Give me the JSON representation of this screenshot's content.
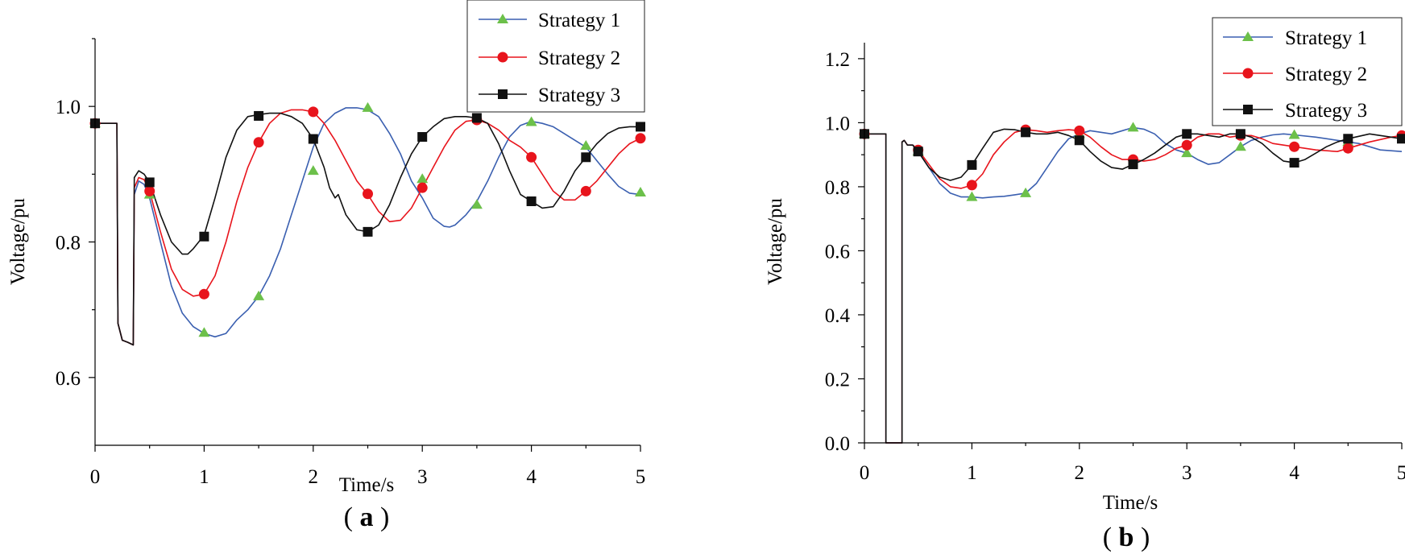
{
  "colors": {
    "strategy1_line": "#3a5fb0",
    "strategy1_marker": "#6cc04a",
    "strategy2": "#e8141c",
    "strategy3": "#111111"
  },
  "chart_data": [
    {
      "type": "line",
      "panel_label": "a",
      "xlabel": "Time/s",
      "ylabel": "Voltage/pu",
      "xlim": [
        0,
        5
      ],
      "ylim": [
        0.5,
        1.1
      ],
      "xticks": [
        0,
        1,
        2,
        3,
        4,
        5
      ],
      "yticks": [
        0.6,
        0.8,
        1.0
      ],
      "xtick_labels": [
        "0",
        "1",
        "2",
        "3",
        "4",
        "5"
      ],
      "ytick_labels": [
        "0.6",
        "0.8",
        "1.0"
      ],
      "legend": [
        "Strategy 1",
        "Strategy 2",
        "Strategy 3"
      ],
      "legend_position": "top-right",
      "series": [
        {
          "name": "Strategy 1",
          "x": [
            0,
            0.2,
            0.2,
            0.21,
            0.25,
            0.3,
            0.35,
            0.35,
            0.36,
            0.4,
            0.45,
            0.5,
            0.6,
            0.7,
            0.8,
            0.9,
            1.0,
            1.1,
            1.2,
            1.3,
            1.4,
            1.5,
            1.6,
            1.7,
            1.8,
            1.9,
            2.0,
            2.1,
            2.2,
            2.3,
            2.4,
            2.5,
            2.6,
            2.7,
            2.8,
            2.9,
            3.0,
            3.1,
            3.2,
            3.25,
            3.3,
            3.4,
            3.5,
            3.6,
            3.7,
            3.8,
            3.9,
            4.0,
            4.1,
            4.2,
            4.3,
            4.4,
            4.5,
            4.6,
            4.7,
            4.8,
            4.9,
            5.0
          ],
          "y": [
            0.975,
            0.975,
            0.975,
            0.68,
            0.655,
            0.652,
            0.648,
            0.648,
            0.87,
            0.89,
            0.885,
            0.865,
            0.8,
            0.735,
            0.695,
            0.675,
            0.665,
            0.66,
            0.665,
            0.685,
            0.7,
            0.72,
            0.75,
            0.79,
            0.84,
            0.89,
            0.94,
            0.975,
            0.99,
            0.998,
            0.998,
            0.995,
            0.985,
            0.96,
            0.93,
            0.89,
            0.865,
            0.835,
            0.823,
            0.822,
            0.825,
            0.84,
            0.86,
            0.89,
            0.925,
            0.955,
            0.972,
            0.978,
            0.975,
            0.97,
            0.96,
            0.95,
            0.94,
            0.92,
            0.9,
            0.882,
            0.872,
            0.87
          ],
          "marker_x": [
            0,
            0.5,
            1.0,
            1.5,
            2.0,
            2.5,
            3.0,
            3.5,
            4.0,
            4.5,
            5.0
          ],
          "marker_y": [
            0.975,
            0.87,
            0.666,
            0.72,
            0.905,
            0.998,
            0.893,
            0.855,
            0.977,
            0.942,
            0.873
          ]
        },
        {
          "name": "Strategy 2",
          "x": [
            0,
            0.2,
            0.2,
            0.21,
            0.25,
            0.3,
            0.35,
            0.35,
            0.36,
            0.4,
            0.45,
            0.5,
            0.6,
            0.7,
            0.8,
            0.9,
            1.0,
            1.1,
            1.2,
            1.3,
            1.4,
            1.5,
            1.6,
            1.7,
            1.8,
            1.9,
            2.0,
            2.1,
            2.2,
            2.3,
            2.4,
            2.5,
            2.6,
            2.7,
            2.8,
            2.9,
            3.0,
            3.1,
            3.2,
            3.3,
            3.4,
            3.5,
            3.6,
            3.7,
            3.8,
            3.9,
            4.0,
            4.1,
            4.2,
            4.3,
            4.4,
            4.5,
            4.6,
            4.7,
            4.8,
            4.9,
            5.0
          ],
          "y": [
            0.975,
            0.975,
            0.975,
            0.68,
            0.655,
            0.652,
            0.648,
            0.648,
            0.88,
            0.895,
            0.892,
            0.875,
            0.815,
            0.76,
            0.73,
            0.72,
            0.723,
            0.75,
            0.8,
            0.86,
            0.91,
            0.947,
            0.975,
            0.99,
            0.995,
            0.995,
            0.992,
            0.975,
            0.95,
            0.92,
            0.89,
            0.87,
            0.845,
            0.83,
            0.832,
            0.85,
            0.88,
            0.91,
            0.94,
            0.965,
            0.978,
            0.98,
            0.975,
            0.965,
            0.95,
            0.94,
            0.925,
            0.9,
            0.875,
            0.862,
            0.862,
            0.875,
            0.89,
            0.91,
            0.93,
            0.945,
            0.953
          ],
          "marker_x": [
            0,
            0.5,
            1.0,
            1.5,
            2.0,
            2.5,
            3.0,
            3.5,
            4.0,
            4.5,
            5.0
          ],
          "marker_y": [
            0.975,
            0.875,
            0.723,
            0.947,
            0.992,
            0.871,
            0.88,
            0.98,
            0.925,
            0.875,
            0.953
          ]
        },
        {
          "name": "Strategy 3",
          "x": [
            0,
            0.2,
            0.2,
            0.21,
            0.25,
            0.3,
            0.35,
            0.35,
            0.36,
            0.4,
            0.45,
            0.5,
            0.6,
            0.7,
            0.8,
            0.85,
            0.9,
            1.0,
            1.1,
            1.2,
            1.3,
            1.4,
            1.5,
            1.6,
            1.7,
            1.8,
            1.9,
            2.0,
            2.1,
            2.15,
            2.2,
            2.23,
            2.3,
            2.4,
            2.5,
            2.6,
            2.7,
            2.8,
            2.9,
            3.0,
            3.1,
            3.2,
            3.3,
            3.4,
            3.5,
            3.6,
            3.7,
            3.8,
            3.9,
            4.0,
            4.1,
            4.2,
            4.3,
            4.4,
            4.5,
            4.6,
            4.7,
            4.8,
            4.9,
            5.0
          ],
          "y": [
            0.975,
            0.975,
            0.975,
            0.68,
            0.655,
            0.652,
            0.648,
            0.648,
            0.895,
            0.905,
            0.9,
            0.888,
            0.84,
            0.8,
            0.782,
            0.782,
            0.79,
            0.81,
            0.865,
            0.925,
            0.965,
            0.985,
            0.988,
            0.99,
            0.99,
            0.985,
            0.975,
            0.952,
            0.91,
            0.88,
            0.865,
            0.87,
            0.84,
            0.818,
            0.815,
            0.825,
            0.855,
            0.895,
            0.93,
            0.955,
            0.97,
            0.982,
            0.985,
            0.985,
            0.983,
            0.975,
            0.945,
            0.905,
            0.87,
            0.86,
            0.85,
            0.852,
            0.875,
            0.905,
            0.925,
            0.945,
            0.96,
            0.968,
            0.97,
            0.97
          ],
          "marker_x": [
            0,
            0.5,
            1.0,
            1.5,
            2.0,
            2.5,
            3.0,
            3.5,
            4.0,
            4.5,
            5.0
          ],
          "marker_y": [
            0.975,
            0.888,
            0.808,
            0.986,
            0.952,
            0.815,
            0.955,
            0.983,
            0.86,
            0.925,
            0.97
          ]
        }
      ]
    },
    {
      "type": "line",
      "panel_label": "b",
      "xlabel": "Time/s",
      "ylabel": "Voltage/pu",
      "xlim": [
        0,
        5
      ],
      "ylim": [
        0,
        1.25
      ],
      "xticks": [
        0,
        1,
        2,
        3,
        4,
        5
      ],
      "yticks": [
        0.0,
        0.2,
        0.4,
        0.6,
        0.8,
        1.0,
        1.2
      ],
      "xtick_labels": [
        "0",
        "1",
        "2",
        "3",
        "4",
        "5"
      ],
      "ytick_labels": [
        "0.0",
        "0.2",
        "0.4",
        "0.6",
        "0.8",
        "1.0",
        "1.2"
      ],
      "legend": [
        "Strategy 1",
        "Strategy 2",
        "Strategy 3"
      ],
      "legend_position": "top-right",
      "series": [
        {
          "name": "Strategy 1",
          "x": [
            0,
            0.2,
            0.2,
            0.35,
            0.35,
            0.37,
            0.4,
            0.45,
            0.5,
            0.6,
            0.7,
            0.8,
            0.9,
            1.0,
            1.1,
            1.2,
            1.3,
            1.4,
            1.5,
            1.6,
            1.7,
            1.8,
            1.9,
            2.0,
            2.1,
            2.2,
            2.3,
            2.4,
            2.5,
            2.6,
            2.7,
            2.8,
            2.9,
            3.0,
            3.1,
            3.2,
            3.3,
            3.4,
            3.5,
            3.6,
            3.7,
            3.8,
            3.9,
            4.0,
            4.2,
            4.4,
            4.6,
            4.8,
            5.0
          ],
          "y": [
            0.965,
            0.965,
            0.0,
            0.0,
            0.94,
            0.945,
            0.93,
            0.93,
            0.91,
            0.86,
            0.81,
            0.78,
            0.768,
            0.768,
            0.765,
            0.768,
            0.77,
            0.775,
            0.78,
            0.81,
            0.86,
            0.91,
            0.95,
            0.965,
            0.975,
            0.97,
            0.965,
            0.975,
            0.985,
            0.98,
            0.965,
            0.935,
            0.915,
            0.905,
            0.885,
            0.87,
            0.875,
            0.9,
            0.925,
            0.945,
            0.955,
            0.962,
            0.965,
            0.962,
            0.955,
            0.945,
            0.935,
            0.915,
            0.91
          ],
          "marker_x": [
            0,
            0.5,
            1.0,
            1.5,
            2.0,
            2.5,
            3.0,
            3.5,
            4.0,
            4.5
          ],
          "marker_y": [
            0.965,
            0.91,
            0.768,
            0.78,
            0.965,
            0.985,
            0.905,
            0.925,
            0.962,
            0.94
          ]
        },
        {
          "name": "Strategy 2",
          "x": [
            0,
            0.2,
            0.2,
            0.35,
            0.35,
            0.37,
            0.4,
            0.45,
            0.5,
            0.6,
            0.7,
            0.8,
            0.9,
            1.0,
            1.1,
            1.2,
            1.3,
            1.4,
            1.5,
            1.6,
            1.7,
            1.8,
            1.9,
            2.0,
            2.1,
            2.2,
            2.3,
            2.4,
            2.5,
            2.6,
            2.7,
            2.8,
            2.9,
            3.0,
            3.1,
            3.2,
            3.3,
            3.4,
            3.5,
            3.6,
            3.7,
            3.8,
            3.9,
            4.0,
            4.2,
            4.4,
            4.5,
            4.7,
            4.9,
            5.0
          ],
          "y": [
            0.965,
            0.965,
            0.0,
            0.0,
            0.94,
            0.945,
            0.93,
            0.93,
            0.915,
            0.87,
            0.825,
            0.8,
            0.795,
            0.805,
            0.84,
            0.9,
            0.94,
            0.97,
            0.978,
            0.975,
            0.97,
            0.975,
            0.978,
            0.975,
            0.955,
            0.925,
            0.9,
            0.885,
            0.885,
            0.88,
            0.885,
            0.9,
            0.92,
            0.93,
            0.955,
            0.965,
            0.965,
            0.955,
            0.96,
            0.96,
            0.95,
            0.935,
            0.93,
            0.925,
            0.915,
            0.91,
            0.92,
            0.94,
            0.955,
            0.96
          ],
          "marker_x": [
            0,
            0.5,
            1.0,
            1.5,
            2.0,
            2.5,
            3.0,
            3.5,
            4.0,
            4.5,
            5.0
          ],
          "marker_y": [
            0.965,
            0.915,
            0.805,
            0.978,
            0.975,
            0.885,
            0.93,
            0.96,
            0.925,
            0.92,
            0.96
          ]
        },
        {
          "name": "Strategy 3",
          "x": [
            0,
            0.2,
            0.2,
            0.35,
            0.35,
            0.37,
            0.4,
            0.45,
            0.5,
            0.6,
            0.7,
            0.8,
            0.9,
            1.0,
            1.1,
            1.2,
            1.3,
            1.4,
            1.5,
            1.6,
            1.7,
            1.8,
            1.9,
            2.0,
            2.1,
            2.2,
            2.3,
            2.4,
            2.5,
            2.6,
            2.7,
            2.8,
            2.9,
            3.0,
            3.1,
            3.2,
            3.3,
            3.4,
            3.5,
            3.6,
            3.7,
            3.8,
            3.9,
            4.0,
            4.1,
            4.2,
            4.3,
            4.4,
            4.5,
            4.7,
            4.9,
            5.0
          ],
          "y": [
            0.965,
            0.965,
            0.0,
            0.0,
            0.94,
            0.945,
            0.93,
            0.93,
            0.91,
            0.86,
            0.83,
            0.82,
            0.83,
            0.868,
            0.92,
            0.97,
            0.98,
            0.978,
            0.97,
            0.965,
            0.965,
            0.97,
            0.96,
            0.945,
            0.91,
            0.88,
            0.86,
            0.855,
            0.87,
            0.885,
            0.905,
            0.93,
            0.955,
            0.965,
            0.965,
            0.96,
            0.955,
            0.965,
            0.965,
            0.955,
            0.935,
            0.905,
            0.88,
            0.875,
            0.885,
            0.905,
            0.925,
            0.94,
            0.95,
            0.965,
            0.955,
            0.95
          ],
          "marker_x": [
            0,
            0.5,
            1.0,
            1.5,
            2.0,
            2.5,
            3.0,
            3.5,
            4.0,
            4.5,
            5.0
          ],
          "marker_y": [
            0.965,
            0.91,
            0.868,
            0.97,
            0.945,
            0.87,
            0.965,
            0.965,
            0.875,
            0.95,
            0.95
          ]
        }
      ]
    }
  ]
}
